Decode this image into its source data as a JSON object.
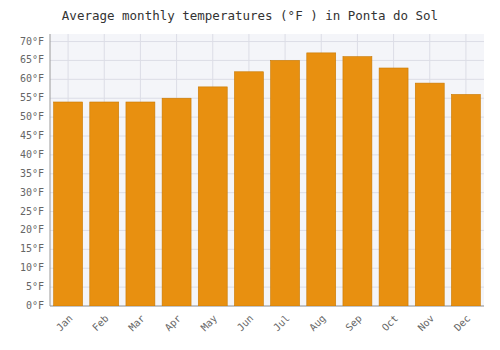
{
  "chart_data": {
    "type": "bar",
    "title": "Average monthly temperatures (°F ) in Ponta do Sol",
    "categories": [
      "Jan",
      "Feb",
      "Mar",
      "Apr",
      "May",
      "Jun",
      "Jul",
      "Aug",
      "Sep",
      "Oct",
      "Nov",
      "Dec"
    ],
    "values": [
      54,
      54,
      54,
      55,
      58,
      62,
      65,
      67,
      66,
      63,
      59,
      56
    ],
    "color": "#E89010",
    "ylim": [
      0,
      72
    ],
    "yticks": [
      {
        "value": 0,
        "label": "0°F"
      },
      {
        "value": 5,
        "label": "5°F"
      },
      {
        "value": 10,
        "label": "10°F"
      },
      {
        "value": 15,
        "label": "15°F"
      },
      {
        "value": 20,
        "label": "20°F"
      },
      {
        "value": 25,
        "label": "25°F"
      },
      {
        "value": 30,
        "label": "30°F"
      },
      {
        "value": 35,
        "label": "35°F"
      },
      {
        "value": 40,
        "label": "40°F"
      },
      {
        "value": 45,
        "label": "45°F"
      },
      {
        "value": 50,
        "label": "50°F"
      },
      {
        "value": 55,
        "label": "55°F"
      },
      {
        "value": 60,
        "label": "60°F"
      },
      {
        "value": 65,
        "label": "65°F"
      },
      {
        "value": 70,
        "label": "70°F"
      }
    ],
    "grid": true
  }
}
